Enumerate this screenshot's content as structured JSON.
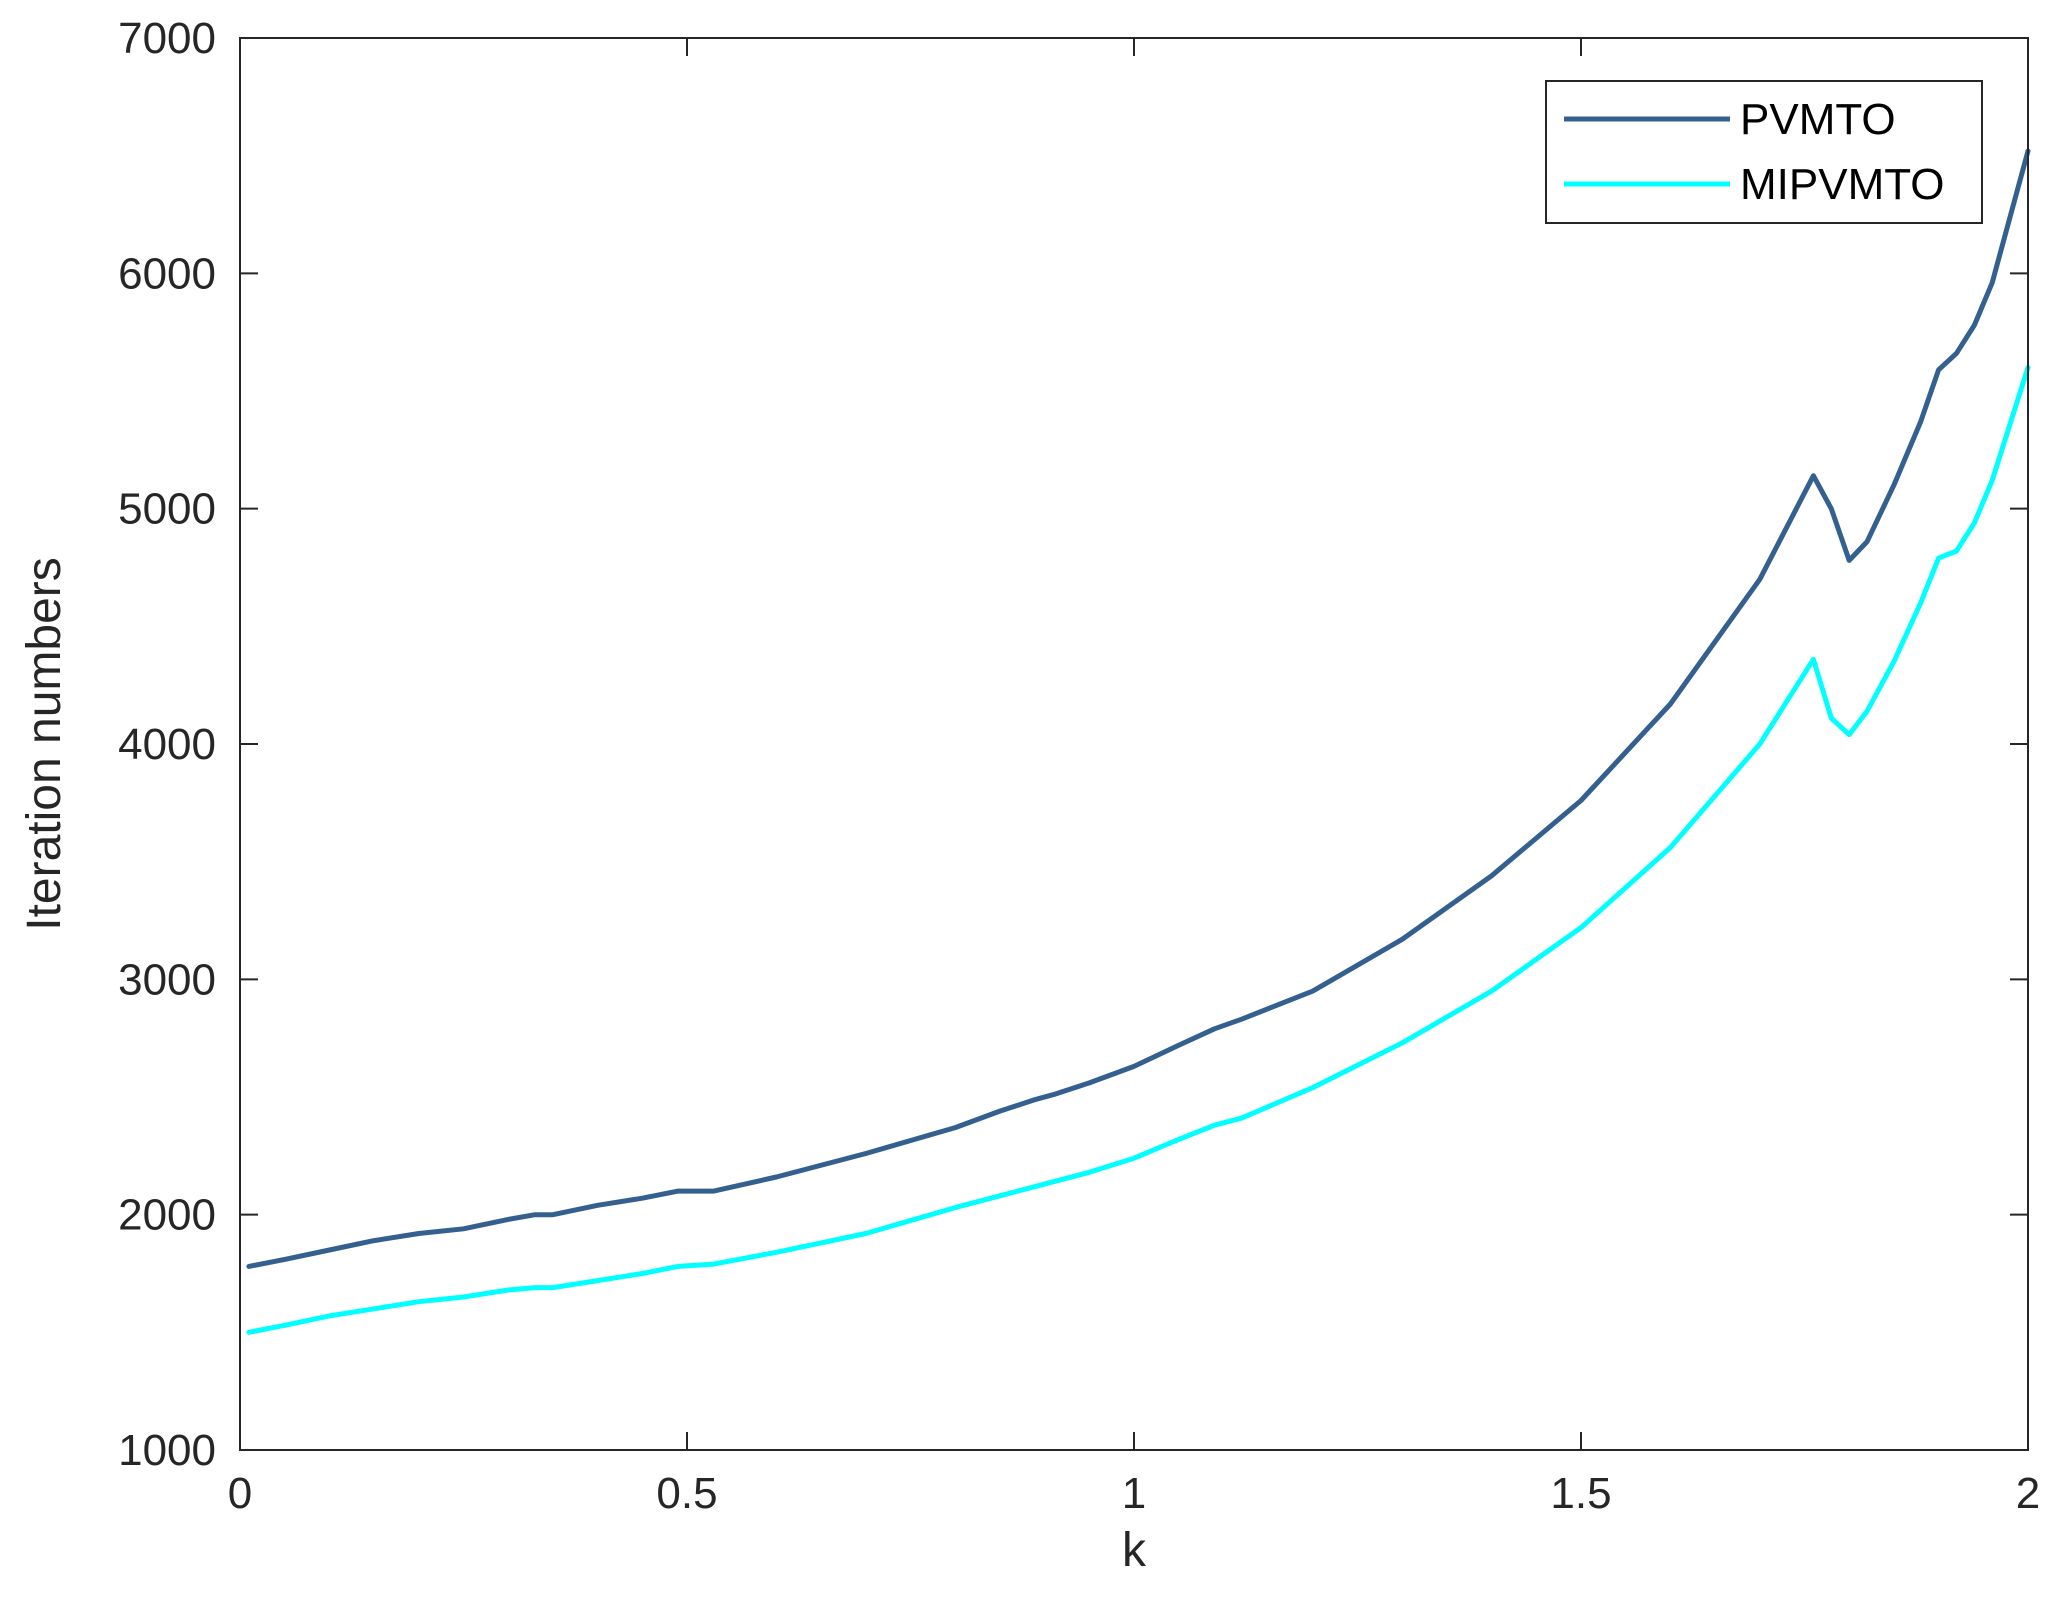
{
  "chart_data": {
    "type": "line",
    "title": "",
    "xlabel": "k",
    "ylabel": "Iteration numbers",
    "xlim": [
      0,
      2
    ],
    "ylim": [
      1000,
      7000
    ],
    "xticks": [
      0,
      0.5,
      1,
      1.5,
      2
    ],
    "xtick_labels": [
      "0",
      "0.5",
      "1",
      "1.5",
      "2"
    ],
    "yticks": [
      1000,
      2000,
      3000,
      4000,
      5000,
      6000,
      7000
    ],
    "ytick_labels": [
      "1000",
      "2000",
      "3000",
      "4000",
      "5000",
      "6000",
      "7000"
    ],
    "grid": false,
    "legend_position": "top-right",
    "series": [
      {
        "name": "PVMTO",
        "color": "#34608f",
        "x": [
          0.01,
          0.05,
          0.1,
          0.15,
          0.2,
          0.25,
          0.3,
          0.33,
          0.35,
          0.4,
          0.45,
          0.49,
          0.53,
          0.6,
          0.7,
          0.8,
          0.85,
          0.89,
          0.91,
          0.95,
          1.0,
          1.05,
          1.09,
          1.12,
          1.2,
          1.3,
          1.4,
          1.5,
          1.6,
          1.7,
          1.76,
          1.78,
          1.8,
          1.82,
          1.85,
          1.88,
          1.9,
          1.92,
          1.94,
          1.96,
          2.0
        ],
        "y": [
          1780,
          1810,
          1850,
          1890,
          1920,
          1940,
          1980,
          2000,
          2000,
          2040,
          2070,
          2100,
          2100,
          2160,
          2260,
          2370,
          2440,
          2490,
          2510,
          2560,
          2630,
          2720,
          2790,
          2830,
          2950,
          3170,
          3440,
          3760,
          4170,
          4700,
          5140,
          5000,
          4780,
          4860,
          5100,
          5370,
          5590,
          5660,
          5780,
          5960,
          6520
        ]
      },
      {
        "name": "MIPVMTO",
        "color": "#00ffff",
        "x": [
          0.01,
          0.05,
          0.1,
          0.15,
          0.2,
          0.25,
          0.3,
          0.33,
          0.35,
          0.4,
          0.45,
          0.49,
          0.53,
          0.6,
          0.7,
          0.8,
          0.85,
          0.89,
          0.91,
          0.95,
          1.0,
          1.05,
          1.09,
          1.12,
          1.2,
          1.3,
          1.4,
          1.5,
          1.6,
          1.7,
          1.76,
          1.78,
          1.8,
          1.82,
          1.85,
          1.88,
          1.9,
          1.92,
          1.94,
          1.96,
          2.0
        ],
        "y": [
          1500,
          1530,
          1570,
          1600,
          1630,
          1650,
          1680,
          1690,
          1690,
          1720,
          1750,
          1780,
          1790,
          1840,
          1920,
          2030,
          2080,
          2120,
          2140,
          2180,
          2240,
          2320,
          2380,
          2410,
          2540,
          2730,
          2950,
          3220,
          3560,
          4000,
          4360,
          4110,
          4040,
          4140,
          4350,
          4600,
          4790,
          4820,
          4940,
          5120,
          5600
        ]
      }
    ]
  }
}
